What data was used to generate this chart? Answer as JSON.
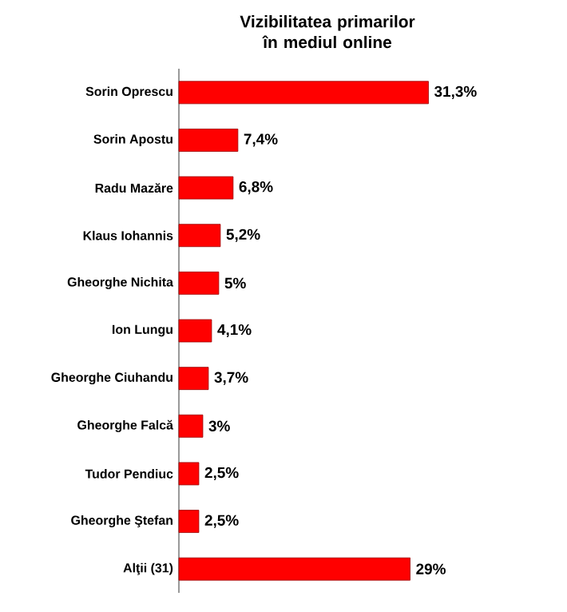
{
  "chart_data": {
    "type": "bar",
    "orientation": "horizontal",
    "title": "Vizibilitatea primarilor în mediul online",
    "categories": [
      "Sorin Oprescu",
      "Sorin Apostu",
      "Radu Mazăre",
      "Klaus Iohannis",
      "Gheorghe Nichita",
      "Ion Lungu",
      "Gheorghe Ciuhandu",
      "Gheorghe Falcă",
      "Tudor Pendiuc",
      "Gheorghe Ştefan",
      "Alţii (31)"
    ],
    "values": [
      31.3,
      7.4,
      6.8,
      5.2,
      5,
      4.1,
      3.7,
      3,
      2.5,
      2.5,
      29
    ],
    "value_labels": [
      "31,3%",
      "7,4%",
      "6,8%",
      "5,2%",
      "5%",
      "4,1%",
      "3,7%",
      "3%",
      "2,5%",
      "2,5%",
      "29%"
    ],
    "color": "#ff0000"
  }
}
